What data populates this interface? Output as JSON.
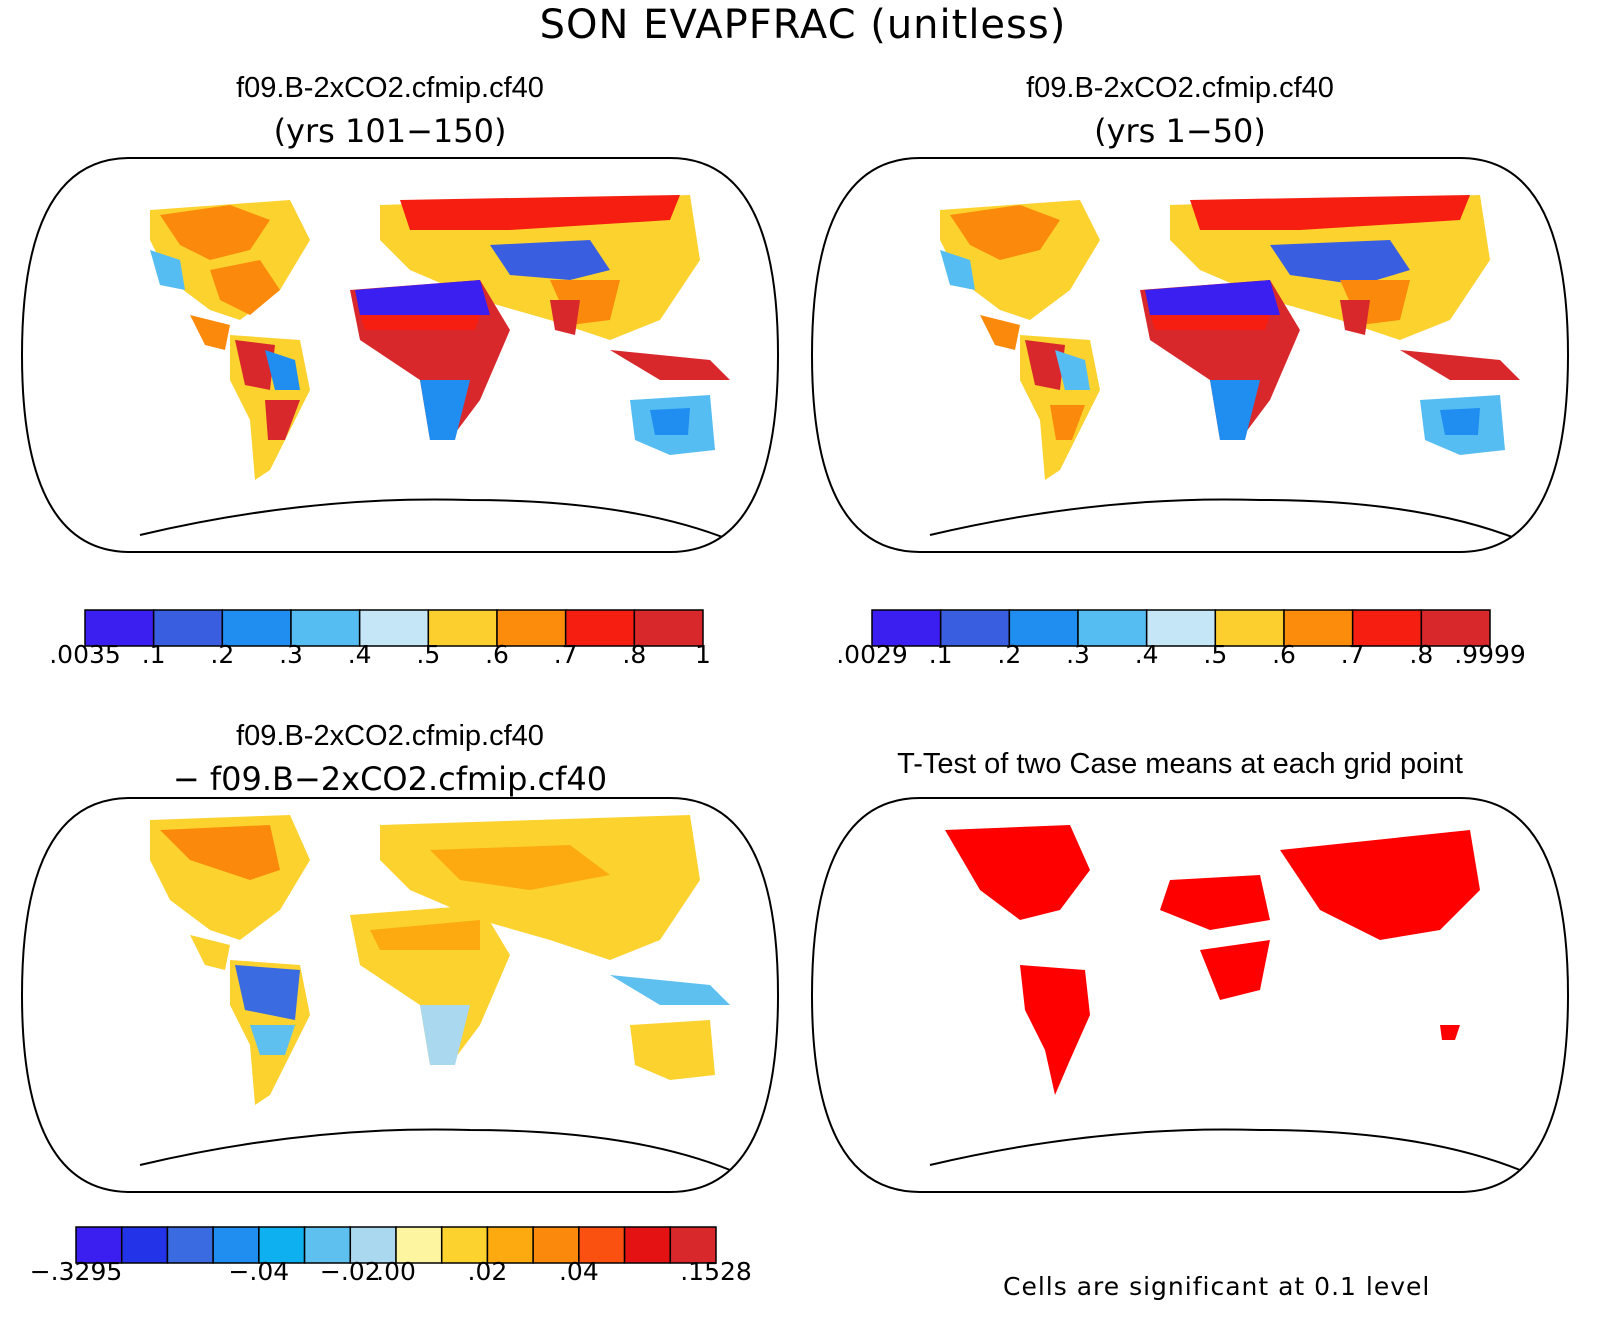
{
  "figure": {
    "title": "SON EVAPFRAC (unitless)"
  },
  "panels": [
    {
      "id": "case1",
      "title": "f09.B-2xCO2.cfmip.cf40",
      "subtitle": "(yrs 101−150)",
      "colorbar": {
        "colors": [
          "#3b1ff0",
          "#3a5ee0",
          "#1f8ef0",
          "#55bdf2",
          "#c5e6f7",
          "#fccf2e",
          "#fb8c0c",
          "#f61e10",
          "#d8282c"
        ],
        "labels": [
          ".0035",
          ".1",
          ".2",
          ".3",
          ".4",
          ".5",
          ".6",
          ".7",
          ".8",
          "1"
        ]
      }
    },
    {
      "id": "case2",
      "title": "f09.B-2xCO2.cfmip.cf40",
      "subtitle": "(yrs 1−50)",
      "colorbar": {
        "colors": [
          "#3b1ff0",
          "#3a5ee0",
          "#1f8ef0",
          "#55bdf2",
          "#c5e6f7",
          "#fccf2e",
          "#fb8c0c",
          "#f61e10",
          "#d8282c"
        ],
        "labels": [
          ".0029",
          ".1",
          ".2",
          ".3",
          ".4",
          ".5",
          ".6",
          ".7",
          ".8",
          ".9999"
        ]
      }
    },
    {
      "id": "difference",
      "title": "f09.B-2xCO2.cfmip.cf40",
      "subtitle": "− f09.B−2xCO2.cfmip.cf40",
      "colorbar": {
        "colors": [
          "#3b1ff0",
          "#2233e8",
          "#3a6be0",
          "#1f8ef0",
          "#0fb0f0",
          "#5ec0ee",
          "#aad8ef",
          "#fdf5a0",
          "#fcd22e",
          "#fcaa10",
          "#fb8a0c",
          "#fa5010",
          "#e41212",
          "#d8282c"
        ],
        "labels": [
          "−.3295",
          "",
          "−.04",
          "−.02",
          ".00",
          ".02",
          ".04",
          "",
          ".1528"
        ]
      }
    },
    {
      "id": "ttest",
      "title": "T-Test of two Case means at each grid point",
      "note": "Cells are significant at 0.1 level",
      "significance_color": "#ff0000"
    }
  ]
}
